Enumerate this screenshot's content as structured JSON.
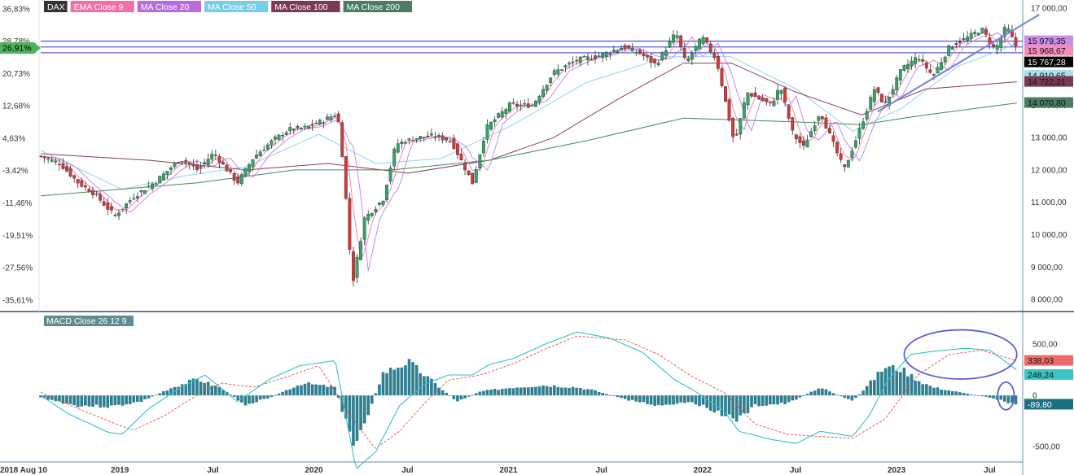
{
  "chart_data": [
    {
      "type": "candlestick",
      "symbol": "DAX",
      "legend": [
        {
          "name": "DAX",
          "color": "#333333"
        },
        {
          "name": "EMA Close 9",
          "color": "#f06fa8"
        },
        {
          "name": "MA Close 20",
          "color": "#b86ce0"
        },
        {
          "name": "MA Close 50",
          "color": "#78cde8"
        },
        {
          "name": "MA Close 100",
          "color": "#7a3a55"
        },
        {
          "name": "MA Close 200",
          "color": "#4a7d62"
        }
      ],
      "price_axis": {
        "ylim": [
          7700,
          17000
        ],
        "ticks": [
          "17 000,00",
          "16 000,00",
          "15 000,00",
          "14 000,00",
          "13 000,00",
          "12 000,00",
          "11 000,00",
          "10 000,00",
          "9 000,00",
          "8 000,00"
        ],
        "tick_values": [
          17000,
          16000,
          15000,
          14000,
          13000,
          12000,
          11000,
          10000,
          9000,
          8000
        ]
      },
      "percent_axis": {
        "ticks": [
          "36,83%",
          "28,78%",
          "20,73%",
          "12,68%",
          "4,63%",
          "-3,42%",
          "-11,46%",
          "-19,51%",
          "-27,56%",
          "-35,61%"
        ],
        "tick_values": [
          16980,
          15980,
          14980,
          13980,
          12980,
          11980,
          10980,
          9980,
          8980,
          7980
        ],
        "current_label": "26,91%",
        "current_value": 15767.28
      },
      "price_labels": [
        {
          "text": "15 979,35",
          "value": 15979.35,
          "color": "#c98ee6"
        },
        {
          "text": "15 968,67",
          "value": 15968.67,
          "color": "#f58cbd"
        },
        {
          "text": "15 767,28",
          "value": 15767.28,
          "color": "#000000"
        },
        {
          "text": "14 910,65",
          "value": 14910.65,
          "color": "#a8dff0"
        },
        {
          "text": "14 722,21",
          "value": 14722.21,
          "color": "#7a3a55"
        },
        {
          "text": "14 070,80",
          "value": 14070.8,
          "color": "#4a7d62"
        }
      ],
      "horizontal_lines": [
        15980,
        15800,
        15620
      ],
      "x_axis": {
        "start": "2018-08-10",
        "end": "2023-08-31",
        "labels": [
          {
            "text": "2018 Aug 10",
            "date": "2018-08-10"
          },
          {
            "text": "2019",
            "date": "2019-01-01"
          },
          {
            "text": "Jul",
            "date": "2019-07-01"
          },
          {
            "text": "2020",
            "date": "2020-01-01"
          },
          {
            "text": "Jul",
            "date": "2020-07-01"
          },
          {
            "text": "2021",
            "date": "2021-01-01"
          },
          {
            "text": "Jul",
            "date": "2021-07-01"
          },
          {
            "text": "2022",
            "date": "2022-01-01"
          },
          {
            "text": "Jul",
            "date": "2022-07-01"
          },
          {
            "text": "2023",
            "date": "2023-01-01"
          },
          {
            "text": "Jul",
            "date": "2023-07-01"
          }
        ]
      },
      "close_path": [
        [
          "2018-08-10",
          12420
        ],
        [
          "2018-09-15",
          12200
        ],
        [
          "2018-10-20",
          11600
        ],
        [
          "2018-11-20",
          11250
        ],
        [
          "2018-12-27",
          10580
        ],
        [
          "2019-02-01",
          11180
        ],
        [
          "2019-03-15",
          11650
        ],
        [
          "2019-04-30",
          12350
        ],
        [
          "2019-06-01",
          12000
        ],
        [
          "2019-07-01",
          12520
        ],
        [
          "2019-08-15",
          11600
        ],
        [
          "2019-09-15",
          12400
        ],
        [
          "2019-10-20",
          12900
        ],
        [
          "2019-11-20",
          13250
        ],
        [
          "2019-12-20",
          13300
        ],
        [
          "2020-01-20",
          13500
        ],
        [
          "2020-02-19",
          13750
        ],
        [
          "2020-03-01",
          12200
        ],
        [
          "2020-03-18",
          8450
        ],
        [
          "2020-04-10",
          10500
        ],
        [
          "2020-05-15",
          11100
        ],
        [
          "2020-06-08",
          12800
        ],
        [
          "2020-07-20",
          13000
        ],
        [
          "2020-08-20",
          13050
        ],
        [
          "2020-09-20",
          12900
        ],
        [
          "2020-10-30",
          11600
        ],
        [
          "2020-11-25",
          13300
        ],
        [
          "2021-01-08",
          14000
        ],
        [
          "2021-02-20",
          14000
        ],
        [
          "2021-03-31",
          15000
        ],
        [
          "2021-05-15",
          15400
        ],
        [
          "2021-06-20",
          15500
        ],
        [
          "2021-08-10",
          15800
        ],
        [
          "2021-09-10",
          15600
        ],
        [
          "2021-10-10",
          15250
        ],
        [
          "2021-11-17",
          16250
        ],
        [
          "2021-12-05",
          15300
        ],
        [
          "2022-01-05",
          16100
        ],
        [
          "2022-02-01",
          15400
        ],
        [
          "2022-03-07",
          12800
        ],
        [
          "2022-03-30",
          14400
        ],
        [
          "2022-05-15",
          14000
        ],
        [
          "2022-06-01",
          14600
        ],
        [
          "2022-06-25",
          13100
        ],
        [
          "2022-07-15",
          12700
        ],
        [
          "2022-08-15",
          13800
        ],
        [
          "2022-09-29",
          12000
        ],
        [
          "2022-10-25",
          13100
        ],
        [
          "2022-11-25",
          14500
        ],
        [
          "2022-12-15",
          14000
        ],
        [
          "2023-01-15",
          15100
        ],
        [
          "2023-02-15",
          15500
        ],
        [
          "2023-03-15",
          14900
        ],
        [
          "2023-04-15",
          15800
        ],
        [
          "2023-05-20",
          16100
        ],
        [
          "2023-06-15",
          16350
        ],
        [
          "2023-07-10",
          15700
        ],
        [
          "2023-07-31",
          16450
        ],
        [
          "2023-08-20",
          15767
        ]
      ],
      "ma_paths": {
        "MA Close 50": [
          [
            "2018-08-10",
            12600
          ],
          [
            "2019-01-10",
            11400
          ],
          [
            "2019-05-01",
            11800
          ],
          [
            "2019-09-01",
            12100
          ],
          [
            "2020-01-15",
            13100
          ],
          [
            "2020-05-01",
            12200
          ],
          [
            "2020-09-01",
            12350
          ],
          [
            "2021-01-15",
            13400
          ],
          [
            "2021-06-01",
            14700
          ],
          [
            "2021-11-01",
            15500
          ],
          [
            "2022-03-01",
            15500
          ],
          [
            "2022-07-01",
            14500
          ],
          [
            "2022-10-15",
            13200
          ],
          [
            "2023-01-15",
            13900
          ],
          [
            "2023-05-01",
            15200
          ],
          [
            "2023-08-20",
            15900
          ]
        ],
        "MA Close 100": [
          [
            "2018-08-10",
            12500
          ],
          [
            "2019-03-01",
            12300
          ],
          [
            "2019-09-01",
            12000
          ],
          [
            "2020-02-01",
            12200
          ],
          [
            "2020-07-01",
            11900
          ],
          [
            "2020-12-01",
            12300
          ],
          [
            "2021-04-01",
            13000
          ],
          [
            "2021-08-01",
            14200
          ],
          [
            "2021-12-01",
            15300
          ],
          [
            "2022-03-01",
            15300
          ],
          [
            "2022-07-01",
            14400
          ],
          [
            "2022-11-01",
            13700
          ],
          [
            "2023-03-01",
            14500
          ],
          [
            "2023-08-20",
            14722
          ]
        ],
        "MA Close 200": [
          [
            "2018-08-10",
            11200
          ],
          [
            "2019-06-01",
            11600
          ],
          [
            "2019-12-01",
            12000
          ],
          [
            "2020-06-01",
            12000
          ],
          [
            "2020-12-01",
            12300
          ],
          [
            "2021-06-01",
            12900
          ],
          [
            "2021-12-01",
            13600
          ],
          [
            "2022-06-01",
            13500
          ],
          [
            "2022-11-01",
            13400
          ],
          [
            "2023-03-01",
            13700
          ],
          [
            "2023-08-20",
            14070
          ]
        ]
      },
      "trendline": [
        [
          "2022-12-01",
          13800
        ],
        [
          "2023-10-01",
          16800
        ]
      ]
    },
    {
      "type": "macd",
      "title": "MACD Close 26 12 9",
      "ylim": [
        -650,
        700
      ],
      "ticks": [
        "500,00",
        "0",
        "-500,00"
      ],
      "tick_values": [
        500,
        0,
        -500
      ],
      "value_labels": [
        {
          "text": "338,03",
          "value": 338.03,
          "color": "#f06a6a"
        },
        {
          "text": "248,24",
          "value": 248.24,
          "color": "#3cc4c4"
        },
        {
          "text": "-89,80",
          "value": -89.8,
          "color": "#1b6f82"
        }
      ],
      "macd_path": [
        [
          "2018-08-10",
          0
        ],
        [
          "2018-10-01",
          -180
        ],
        [
          "2018-12-15",
          -360
        ],
        [
          "2019-01-10",
          -380
        ],
        [
          "2019-03-01",
          -130
        ],
        [
          "2019-05-01",
          80
        ],
        [
          "2019-06-15",
          200
        ],
        [
          "2019-08-15",
          -60
        ],
        [
          "2019-10-15",
          160
        ],
        [
          "2019-12-10",
          290
        ],
        [
          "2020-02-15",
          340
        ],
        [
          "2020-03-25",
          -720
        ],
        [
          "2020-05-01",
          -550
        ],
        [
          "2020-06-15",
          -100
        ],
        [
          "2020-08-01",
          110
        ],
        [
          "2020-09-15",
          200
        ],
        [
          "2020-10-30",
          200
        ],
        [
          "2020-11-30",
          300
        ],
        [
          "2021-01-15",
          360
        ],
        [
          "2021-03-15",
          500
        ],
        [
          "2021-05-15",
          620
        ],
        [
          "2021-07-15",
          560
        ],
        [
          "2021-09-15",
          420
        ],
        [
          "2021-11-15",
          150
        ],
        [
          "2021-12-20",
          50
        ],
        [
          "2022-02-15",
          -150
        ],
        [
          "2022-03-15",
          -350
        ],
        [
          "2022-05-15",
          -430
        ],
        [
          "2022-07-01",
          -470
        ],
        [
          "2022-08-15",
          -350
        ],
        [
          "2022-10-15",
          -400
        ],
        [
          "2022-11-15",
          -200
        ],
        [
          "2022-12-20",
          150
        ],
        [
          "2023-02-01",
          400
        ],
        [
          "2023-03-15",
          430
        ],
        [
          "2023-05-15",
          460
        ],
        [
          "2023-07-01",
          440
        ],
        [
          "2023-08-20",
          248
        ]
      ],
      "signal_path": [
        [
          "2018-08-10",
          30
        ],
        [
          "2018-10-15",
          -120
        ],
        [
          "2018-12-20",
          -260
        ],
        [
          "2019-01-31",
          -340
        ],
        [
          "2019-03-30",
          -200
        ],
        [
          "2019-05-30",
          0
        ],
        [
          "2019-07-15",
          120
        ],
        [
          "2019-09-15",
          80
        ],
        [
          "2019-11-15",
          180
        ],
        [
          "2020-01-15",
          290
        ],
        [
          "2020-03-15",
          -200
        ],
        [
          "2020-04-30",
          -520
        ],
        [
          "2020-06-15",
          -350
        ],
        [
          "2020-07-31",
          -80
        ],
        [
          "2020-09-15",
          150
        ],
        [
          "2020-11-15",
          200
        ],
        [
          "2021-01-15",
          310
        ],
        [
          "2021-03-15",
          450
        ],
        [
          "2021-05-15",
          580
        ],
        [
          "2021-08-15",
          540
        ],
        [
          "2021-10-15",
          400
        ],
        [
          "2021-12-15",
          190
        ],
        [
          "2022-02-15",
          30
        ],
        [
          "2022-04-15",
          -280
        ],
        [
          "2022-06-15",
          -380
        ],
        [
          "2022-08-15",
          -400
        ],
        [
          "2022-10-15",
          -420
        ],
        [
          "2022-12-15",
          -230
        ],
        [
          "2023-02-15",
          200
        ],
        [
          "2023-04-15",
          400
        ],
        [
          "2023-06-15",
          440
        ],
        [
          "2023-08-20",
          338
        ]
      ],
      "histogram_path": [
        [
          "2018-08-10",
          -20
        ],
        [
          "2018-10-15",
          -100
        ],
        [
          "2018-12-20",
          -110
        ],
        [
          "2019-02-15",
          -60
        ],
        [
          "2019-04-15",
          80
        ],
        [
          "2019-06-01",
          160
        ],
        [
          "2019-07-15",
          70
        ],
        [
          "2019-08-30",
          -90
        ],
        [
          "2019-10-15",
          -20
        ],
        [
          "2019-12-15",
          120
        ],
        [
          "2020-02-15",
          80
        ],
        [
          "2020-03-20",
          -500
        ],
        [
          "2020-04-15",
          -200
        ],
        [
          "2020-05-15",
          220
        ],
        [
          "2020-07-01",
          330
        ],
        [
          "2020-08-15",
          140
        ],
        [
          "2020-10-01",
          -60
        ],
        [
          "2020-11-15",
          40
        ],
        [
          "2021-01-15",
          80
        ],
        [
          "2021-03-15",
          100
        ],
        [
          "2021-05-15",
          80
        ],
        [
          "2021-06-15",
          50
        ],
        [
          "2021-08-15",
          -40
        ],
        [
          "2021-10-15",
          -100
        ],
        [
          "2021-12-15",
          -60
        ],
        [
          "2022-03-15",
          -240
        ],
        [
          "2022-04-15",
          -100
        ],
        [
          "2022-06-15",
          -80
        ],
        [
          "2022-08-15",
          80
        ],
        [
          "2022-10-15",
          -60
        ],
        [
          "2022-12-15",
          280
        ],
        [
          "2023-01-15",
          260
        ],
        [
          "2023-02-15",
          150
        ],
        [
          "2023-03-15",
          80
        ],
        [
          "2023-05-15",
          20
        ],
        [
          "2023-07-01",
          -20
        ],
        [
          "2023-08-20",
          -90
        ]
      ],
      "annotations": [
        {
          "shape": "ellipse",
          "from": "2023-01-20",
          "to": "2023-08-20",
          "value_range": [
            160,
            640
          ]
        },
        {
          "shape": "ellipse",
          "from": "2023-07-15",
          "to": "2023-08-15",
          "value_range": [
            -140,
            130
          ]
        }
      ]
    }
  ]
}
